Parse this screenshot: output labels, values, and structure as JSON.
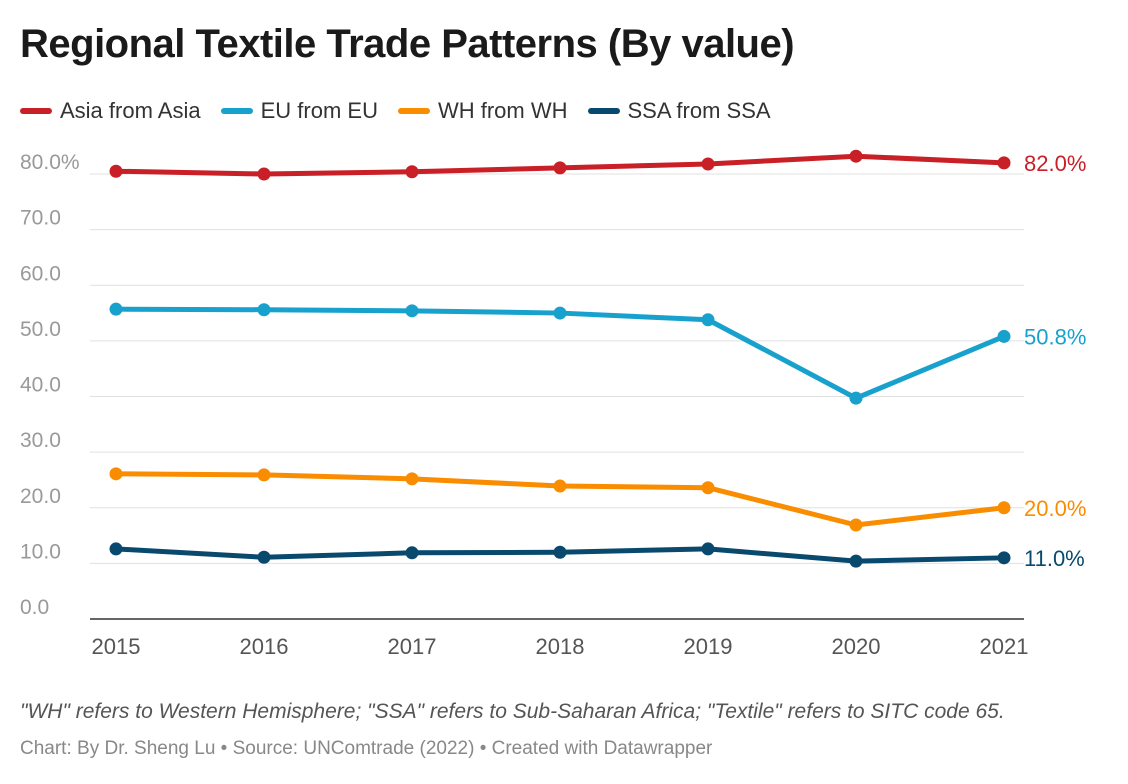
{
  "chart_data": {
    "type": "line",
    "title": "Regional Textile Trade Patterns (By value)",
    "x": [
      2015,
      2016,
      2017,
      2018,
      2019,
      2020,
      2021
    ],
    "ylim": [
      0,
      80
    ],
    "yticks": [
      "0.0",
      "10.0",
      "20.0",
      "30.0",
      "40.0",
      "50.0",
      "60.0",
      "70.0",
      "80.0%"
    ],
    "ytick_values": [
      0,
      10,
      20,
      30,
      40,
      50,
      60,
      70,
      80
    ],
    "grid": true,
    "legend_placement": "top-left",
    "series": [
      {
        "name": "Asia from Asia",
        "color": "#c91f26",
        "values": [
          80.5,
          80.0,
          80.4,
          81.1,
          81.8,
          83.2,
          82.0
        ],
        "end_label": "82.0%"
      },
      {
        "name": "EU from EU",
        "color": "#18a1cd",
        "values": [
          55.7,
          55.6,
          55.4,
          55.0,
          53.8,
          39.7,
          50.8
        ],
        "end_label": "50.8%"
      },
      {
        "name": "WH from WH",
        "color": "#fa8c00",
        "values": [
          26.1,
          25.9,
          25.2,
          23.9,
          23.6,
          16.9,
          20.0
        ],
        "end_label": "20.0%"
      },
      {
        "name": "SSA from SSA",
        "color": "#09496e",
        "values": [
          12.6,
          11.1,
          11.9,
          12.0,
          12.6,
          10.4,
          11.0
        ],
        "end_label": "11.0%"
      }
    ]
  },
  "footer": {
    "note": "\"WH\" refers to Western Hemisphere; \"SSA\" refers to Sub-Saharan Africa; \"Textile\" refers to SITC code 65.",
    "credit": "Chart: By Dr. Sheng Lu • Source: UNComtrade (2022) • Created with Datawrapper"
  }
}
